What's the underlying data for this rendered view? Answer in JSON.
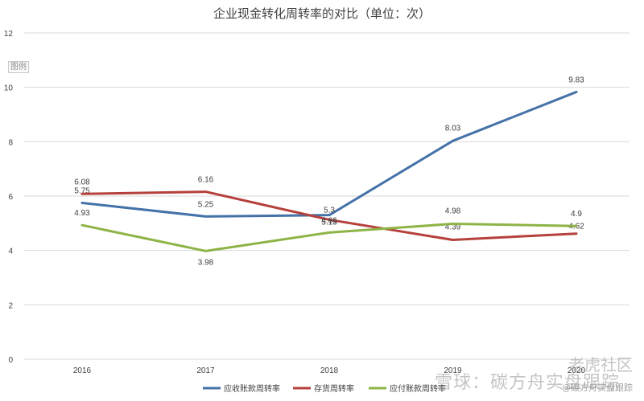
{
  "title": "企业现金转化周转率的对比（单位：次）",
  "legend_badge": "图例",
  "watermarks": [
    "老虎社区",
    "雪球：碳方舟实盘跟踪",
    "@碳方舟实盘跟踪"
  ],
  "colors": {
    "axis_text": "#404040",
    "grid": "#d9d9d9",
    "series": [
      "#4472a8",
      "#b5403c",
      "#8db446"
    ]
  },
  "chart_data": {
    "type": "line",
    "title": "企业现金转化周转率的对比（单位：次）",
    "categories": [
      "2016",
      "2017",
      "2018",
      "2019",
      "2020"
    ],
    "ylim": [
      0,
      12
    ],
    "yticks": [
      0,
      2,
      4,
      6,
      8,
      10,
      12
    ],
    "grid": true,
    "legend_position": "bottom",
    "series": [
      {
        "name": "应收账款周转率",
        "values": [
          5.75,
          5.25,
          5.3,
          8.03,
          9.83
        ]
      },
      {
        "name": "存货周转率",
        "values": [
          6.08,
          6.16,
          5.13,
          4.39,
          4.62
        ]
      },
      {
        "name": "应付账款周转率",
        "values": [
          4.93,
          3.98,
          4.66,
          4.98,
          4.9
        ]
      }
    ]
  }
}
